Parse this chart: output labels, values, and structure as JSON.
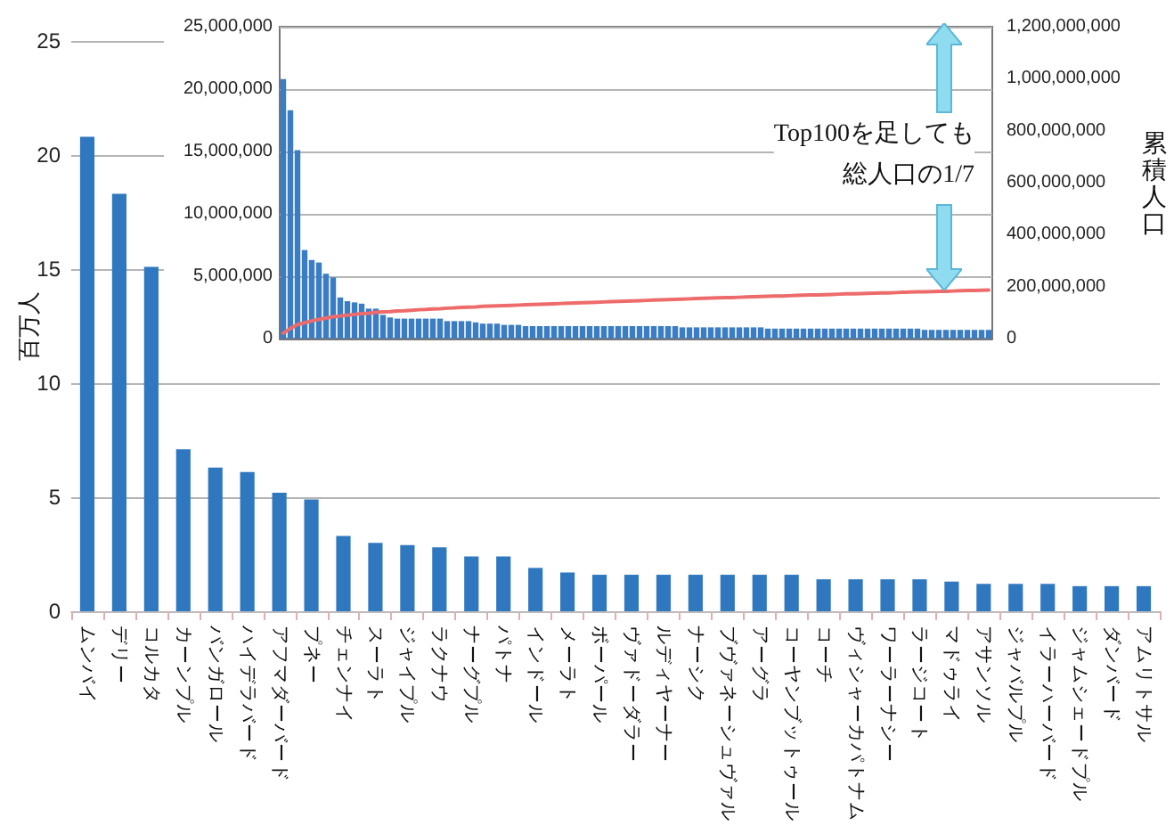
{
  "chart_data": [
    {
      "type": "bar",
      "ylabel": "百万人",
      "categories": [
        "ムンバイ",
        "デリー",
        "コルカタ",
        "カーンプル",
        "バンガロール",
        "ハイデラバード",
        "アフマダーバード",
        "プネー",
        "チェンナイ",
        "スーラト",
        "ジャイプル",
        "ラクナウ",
        "ナーグプル",
        "パトナ",
        "インドール",
        "メーラト",
        "ボーパール",
        "ヴァドーダラー",
        "ルディヤーナー",
        "ナーシク",
        "ブヴァネーシュヴァル",
        "アーグラ",
        "コーヤンブットゥール",
        "コーチ",
        "ヴィシャーカパトナム",
        "ワーラーナシー",
        "ラージコート",
        "マドゥライ",
        "アサンソル",
        "ジャバルプル",
        "イラーハーバード",
        "ジャムシェードプル",
        "ダンバード",
        "アムリトサル"
      ],
      "values": [
        20.8,
        18.3,
        15.1,
        7.1,
        6.3,
        6.1,
        5.2,
        4.9,
        3.3,
        3.0,
        2.9,
        2.8,
        2.4,
        2.4,
        1.9,
        1.7,
        1.6,
        1.6,
        1.6,
        1.6,
        1.6,
        1.6,
        1.6,
        1.4,
        1.4,
        1.4,
        1.4,
        1.3,
        1.2,
        1.2,
        1.2,
        1.1,
        1.1,
        1.1
      ],
      "color": "#2f78c0",
      "ylim": [
        0,
        25
      ],
      "yticks": [
        0,
        5,
        10,
        15,
        20,
        25
      ],
      "grid": "y"
    },
    {
      "type": "bar",
      "y2label": "累積人口",
      "annotations": [
        "Top100を足しても",
        "総人口の1/7"
      ],
      "categories": [
        null,
        null,
        null,
        null,
        null,
        null,
        null,
        null,
        null,
        null,
        null,
        null,
        null,
        null,
        null,
        null,
        null,
        null,
        null,
        null,
        null,
        null,
        null,
        null,
        null,
        null,
        null,
        null,
        null,
        null,
        null,
        null,
        null,
        null,
        null,
        null,
        null,
        null,
        null,
        null,
        null,
        null,
        null,
        null,
        null,
        null,
        null,
        null,
        null,
        null,
        null,
        null,
        null,
        null,
        null,
        null,
        null,
        null,
        null,
        null,
        null,
        null,
        null,
        null,
        null,
        null,
        null,
        null,
        null,
        null,
        null,
        null,
        null,
        null,
        null,
        null,
        null,
        null,
        null,
        null,
        null,
        null,
        null,
        null,
        null,
        null,
        null,
        null,
        null,
        null,
        null,
        null,
        null,
        null,
        null,
        null,
        null,
        null,
        null,
        null
      ],
      "series": [
        {
          "color": "#3a7dc4",
          "values": [
            20800000,
            18300000,
            15100000,
            7100000,
            6300000,
            6100000,
            5200000,
            4900000,
            3300000,
            3000000,
            2900000,
            2800000,
            2400000,
            2400000,
            1900000,
            1700000,
            1600000,
            1600000,
            1600000,
            1600000,
            1600000,
            1600000,
            1600000,
            1400000,
            1400000,
            1400000,
            1400000,
            1300000,
            1200000,
            1200000,
            1200000,
            1100000,
            1100000,
            1100000,
            1000000,
            1000000,
            1000000,
            1000000,
            1000000,
            1000000,
            1000000,
            1000000,
            1000000,
            1000000,
            1000000,
            1000000,
            1000000,
            1000000,
            1000000,
            1000000,
            1000000,
            1000000,
            1000000,
            1000000,
            1000000,
            1000000,
            900000,
            900000,
            900000,
            900000,
            900000,
            900000,
            900000,
            900000,
            900000,
            900000,
            900000,
            900000,
            800000,
            800000,
            800000,
            800000,
            800000,
            800000,
            800000,
            800000,
            800000,
            800000,
            800000,
            800000,
            800000,
            800000,
            800000,
            800000,
            800000,
            800000,
            800000,
            800000,
            800000,
            800000,
            700000,
            700000,
            700000,
            700000,
            700000,
            700000,
            700000,
            700000,
            700000,
            700000
          ]
        },
        {
          "type": "line",
          "axis": "y2",
          "color": "#ee6b6b",
          "values": [
            21000000,
            39000000,
            54000000,
            61000000,
            68000000,
            74000000,
            79000000,
            84000000,
            87000000,
            90000000,
            93000000,
            96000000,
            98000000,
            101000000,
            103000000,
            104000000,
            106000000,
            107000000,
            109000000,
            111000000,
            112000000,
            114000000,
            115000000,
            117000000,
            118000000,
            120000000,
            121000000,
            122000000,
            124000000,
            125000000,
            126000000,
            127000000,
            128000000,
            129000000,
            130000000,
            131000000,
            132000000,
            133000000,
            134000000,
            135000000,
            136000000,
            137000000,
            138000000,
            139000000,
            140000000,
            141000000,
            142000000,
            143000000,
            144000000,
            145000000,
            146000000,
            147000000,
            148000000,
            149000000,
            150000000,
            151000000,
            152000000,
            153000000,
            154000000,
            155000000,
            156000000,
            157000000,
            158000000,
            158000000,
            159000000,
            160000000,
            161000000,
            162000000,
            163000000,
            164000000,
            164000000,
            165000000,
            166000000,
            167000000,
            168000000,
            168000000,
            169000000,
            170000000,
            171000000,
            172000000,
            172000000,
            173000000,
            174000000,
            175000000,
            176000000,
            176000000,
            177000000,
            178000000,
            179000000,
            180000000,
            180000000,
            181000000,
            182000000,
            182000000,
            183000000,
            184000000,
            185000000,
            185000000,
            186000000,
            187000000
          ]
        }
      ],
      "ylim": [
        0,
        25000000
      ],
      "yticks": [
        0,
        {
          "value": 5000000,
          "label": "5,000,000"
        },
        {
          "value": 10000000,
          "label": "10,000,000"
        },
        {
          "value": 15000000,
          "label": "15,000,000"
        },
        {
          "value": 20000000,
          "label": "20,000,000"
        },
        {
          "value": 25000000,
          "label": "25,000,000"
        }
      ],
      "y2lim": [
        0,
        1200000000
      ],
      "y2ticks": [
        0,
        {
          "value": 200000000,
          "label": "200,000,000"
        },
        {
          "value": 400000000,
          "label": "400,000,000"
        },
        {
          "value": 600000000,
          "label": "600,000,000"
        },
        {
          "value": 800000000,
          "label": "800,000,000"
        },
        {
          "value": 1000000000,
          "label": "1,000,000,000"
        },
        {
          "value": 1200000000,
          "label": "1,200,000,000"
        }
      ],
      "tick_labels": "y",
      "grid": "y",
      "marker": "none"
    }
  ]
}
